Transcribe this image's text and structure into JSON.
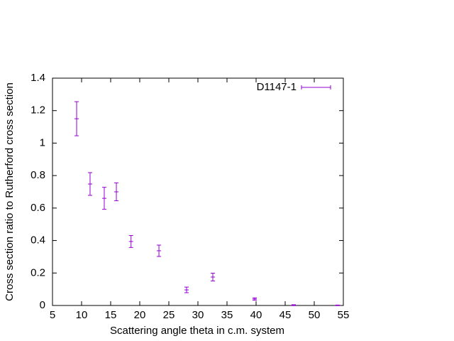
{
  "chart_data": {
    "type": "errorbar",
    "xlabel": "Scattering angle theta in c.m. system",
    "ylabel": "Cross section ratio to Rutherford cross section",
    "x": [
      9.15,
      11.46,
      13.9,
      15.98,
      18.5,
      23.3,
      28.05,
      32.56,
      39.76,
      46.46,
      54.0
    ],
    "series": [
      {
        "name": "D1147-1",
        "color": "#9400d3",
        "values": [
          1.15,
          0.748,
          0.66,
          0.7,
          0.394,
          0.337,
          0.096,
          0.175,
          0.04,
          0.002,
          0.001
        ],
        "errors": [
          0.105,
          0.07,
          0.068,
          0.055,
          0.037,
          0.035,
          0.017,
          0.024,
          0.007,
          0.003,
          0.002
        ]
      }
    ],
    "xlim": [
      5,
      55
    ],
    "xticks": [
      5,
      10,
      15,
      20,
      25,
      30,
      35,
      40,
      45,
      50,
      55
    ],
    "ylim": [
      0,
      1.4
    ],
    "yticks": [
      0,
      0.2,
      0.4,
      0.6,
      0.8,
      1,
      1.2,
      1.4
    ],
    "legend": "top-right"
  }
}
